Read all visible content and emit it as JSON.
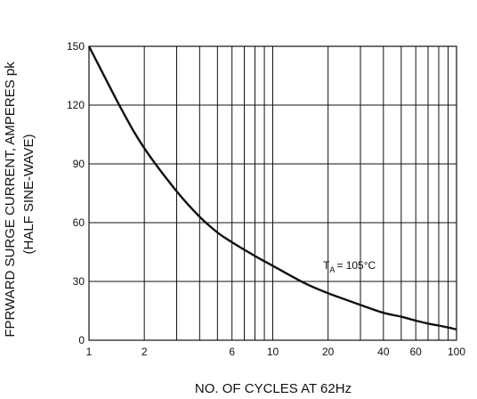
{
  "chart_data": {
    "type": "line",
    "xlabel": "NO. OF CYCLES AT 62Hz",
    "ylabel": "FPRWARD SURGE CURRENT, AMPERES pk",
    "ylabel_line2": "(HALF SINE-WAVE)",
    "xscale": "log",
    "xlim": [
      1,
      100
    ],
    "ylim": [
      0,
      150
    ],
    "xticks": [
      1,
      2,
      6,
      10,
      20,
      40,
      60,
      100
    ],
    "xtick_labels": [
      "1",
      "2",
      "6",
      "10",
      "20",
      "40",
      "60",
      "100"
    ],
    "xgrid": [
      1,
      2,
      3,
      4,
      5,
      6,
      7,
      8,
      9,
      10,
      20,
      30,
      40,
      50,
      60,
      70,
      80,
      90,
      100
    ],
    "yticks": [
      0,
      30,
      60,
      90,
      120,
      150
    ],
    "ytick_labels": [
      "0",
      "30",
      "60",
      "90",
      "120",
      "150"
    ],
    "grid": true,
    "annotation": {
      "main": "T",
      "sub": "A",
      "rest": "= 105°C"
    },
    "series": [
      {
        "color": "#111111",
        "x": [
          1,
          1.5,
          2,
          3,
          4,
          5,
          6,
          8,
          10,
          15,
          20,
          30,
          40,
          50,
          60,
          70,
          80,
          90,
          100
        ],
        "y": [
          150,
          118,
          98,
          76,
          63,
          55,
          50,
          43,
          38,
          29,
          24,
          18,
          14,
          12,
          10,
          8.5,
          7.5,
          6.5,
          5.5
        ]
      }
    ]
  }
}
